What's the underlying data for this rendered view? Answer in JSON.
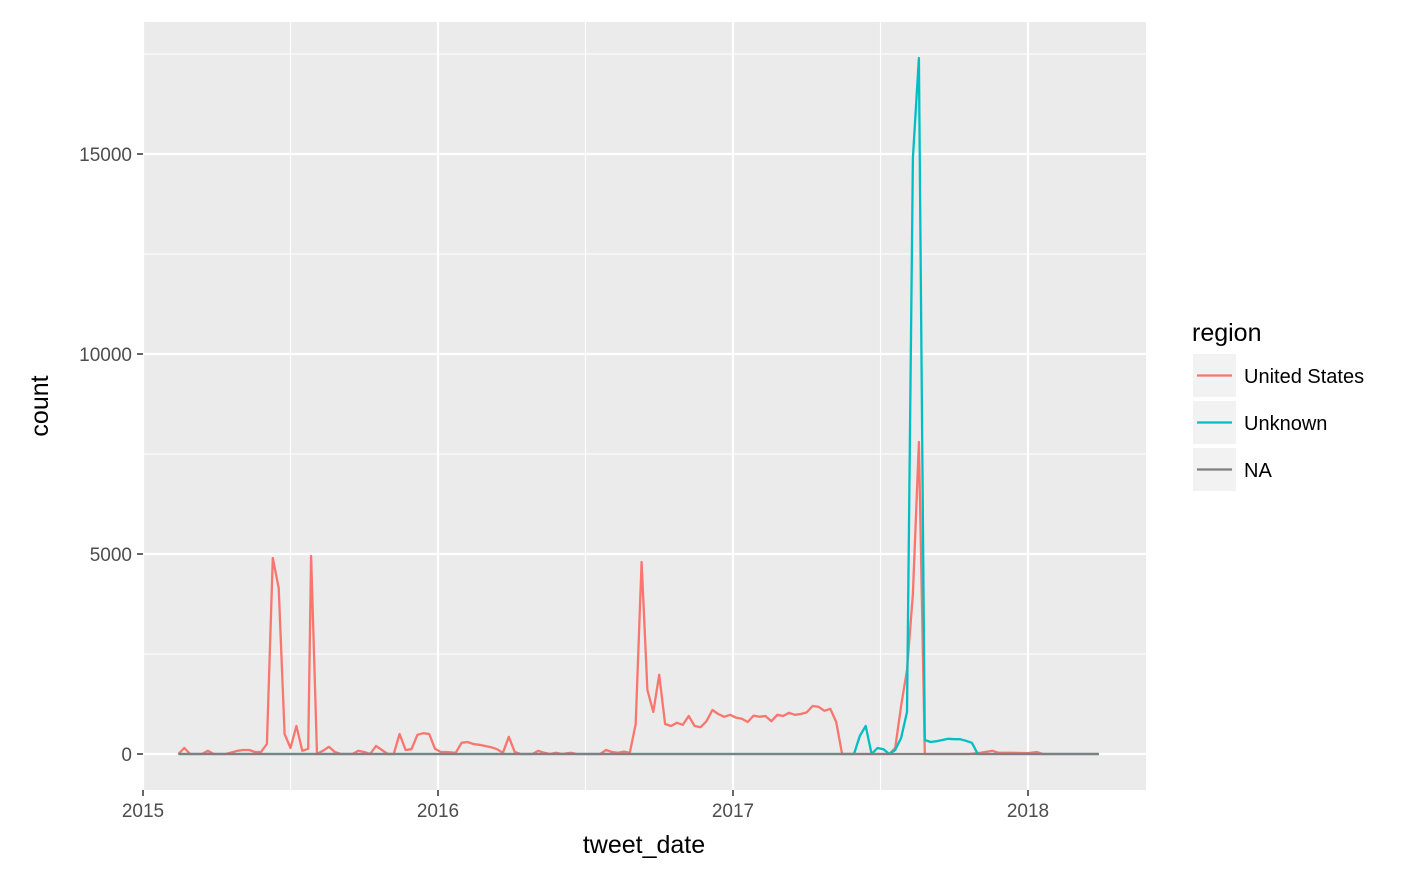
{
  "chart_data": {
    "type": "line",
    "xlabel": "tweet_date",
    "ylabel": "count",
    "xlim": [
      2015.0,
      2018.4
    ],
    "ylim": [
      -900,
      18300
    ],
    "xticks": [
      2015,
      2016,
      2017,
      2018
    ],
    "xtick_labels": [
      "2015",
      "2016",
      "2017",
      "2018"
    ],
    "yticks": [
      0,
      5000,
      10000,
      15000
    ],
    "ytick_labels": [
      "0",
      "5000",
      "10000",
      "15000"
    ],
    "grid": true,
    "legend": {
      "title": "region",
      "position": "right",
      "entries": [
        "United States",
        "Unknown",
        "NA"
      ]
    },
    "series": [
      {
        "name": "United States",
        "color": "#F8766D",
        "points": [
          [
            2015.12,
            0
          ],
          [
            2015.14,
            150
          ],
          [
            2015.16,
            0
          ],
          [
            2015.2,
            0
          ],
          [
            2015.22,
            80
          ],
          [
            2015.24,
            0
          ],
          [
            2015.28,
            0
          ],
          [
            2015.32,
            80
          ],
          [
            2015.34,
            100
          ],
          [
            2015.36,
            100
          ],
          [
            2015.38,
            50
          ],
          [
            2015.4,
            50
          ],
          [
            2015.42,
            250
          ],
          [
            2015.44,
            4900
          ],
          [
            2015.46,
            4150
          ],
          [
            2015.48,
            500
          ],
          [
            2015.5,
            150
          ],
          [
            2015.52,
            700
          ],
          [
            2015.54,
            80
          ],
          [
            2015.56,
            130
          ],
          [
            2015.57,
            4950
          ],
          [
            2015.59,
            0
          ],
          [
            2015.61,
            80
          ],
          [
            2015.63,
            180
          ],
          [
            2015.65,
            50
          ],
          [
            2015.67,
            0
          ],
          [
            2015.71,
            0
          ],
          [
            2015.73,
            80
          ],
          [
            2015.75,
            50
          ],
          [
            2015.77,
            0
          ],
          [
            2015.79,
            200
          ],
          [
            2015.81,
            100
          ],
          [
            2015.83,
            0
          ],
          [
            2015.85,
            0
          ],
          [
            2015.87,
            500
          ],
          [
            2015.89,
            100
          ],
          [
            2015.91,
            120
          ],
          [
            2015.93,
            480
          ],
          [
            2015.95,
            520
          ],
          [
            2015.97,
            500
          ],
          [
            2015.99,
            130
          ],
          [
            2016.01,
            50
          ],
          [
            2016.03,
            50
          ],
          [
            2016.06,
            30
          ],
          [
            2016.08,
            280
          ],
          [
            2016.1,
            300
          ],
          [
            2016.12,
            250
          ],
          [
            2016.14,
            230
          ],
          [
            2016.16,
            200
          ],
          [
            2016.18,
            170
          ],
          [
            2016.2,
            120
          ],
          [
            2016.22,
            30
          ],
          [
            2016.24,
            430
          ],
          [
            2016.26,
            50
          ],
          [
            2016.28,
            0
          ],
          [
            2016.32,
            0
          ],
          [
            2016.34,
            80
          ],
          [
            2016.36,
            30
          ],
          [
            2016.38,
            0
          ],
          [
            2016.4,
            30
          ],
          [
            2016.42,
            0
          ],
          [
            2016.45,
            30
          ],
          [
            2016.47,
            0
          ],
          [
            2016.55,
            0
          ],
          [
            2016.57,
            100
          ],
          [
            2016.59,
            50
          ],
          [
            2016.61,
            30
          ],
          [
            2016.63,
            60
          ],
          [
            2016.65,
            30
          ],
          [
            2016.67,
            750
          ],
          [
            2016.69,
            4800
          ],
          [
            2016.71,
            1600
          ],
          [
            2016.73,
            1050
          ],
          [
            2016.75,
            1980
          ],
          [
            2016.77,
            750
          ],
          [
            2016.79,
            700
          ],
          [
            2016.81,
            780
          ],
          [
            2016.83,
            730
          ],
          [
            2016.85,
            950
          ],
          [
            2016.87,
            700
          ],
          [
            2016.89,
            670
          ],
          [
            2016.91,
            820
          ],
          [
            2016.93,
            1100
          ],
          [
            2016.95,
            1000
          ],
          [
            2016.97,
            930
          ],
          [
            2016.99,
            980
          ],
          [
            2017.01,
            910
          ],
          [
            2017.03,
            880
          ],
          [
            2017.05,
            800
          ],
          [
            2017.07,
            960
          ],
          [
            2017.09,
            930
          ],
          [
            2017.11,
            950
          ],
          [
            2017.13,
            820
          ],
          [
            2017.15,
            980
          ],
          [
            2017.17,
            950
          ],
          [
            2017.19,
            1030
          ],
          [
            2017.21,
            980
          ],
          [
            2017.23,
            1000
          ],
          [
            2017.25,
            1040
          ],
          [
            2017.27,
            1200
          ],
          [
            2017.29,
            1180
          ],
          [
            2017.31,
            1080
          ],
          [
            2017.33,
            1130
          ],
          [
            2017.35,
            800
          ],
          [
            2017.37,
            0
          ],
          [
            2017.45,
            0
          ],
          [
            2017.49,
            0
          ],
          [
            2017.53,
            0
          ],
          [
            2017.55,
            150
          ],
          [
            2017.57,
            1200
          ],
          [
            2017.59,
            2100
          ],
          [
            2017.61,
            4000
          ],
          [
            2017.63,
            7800
          ],
          [
            2017.65,
            0
          ],
          [
            2017.8,
            0
          ],
          [
            2017.84,
            30
          ],
          [
            2017.88,
            80
          ],
          [
            2017.9,
            30
          ],
          [
            2017.95,
            30
          ],
          [
            2018.0,
            20
          ],
          [
            2018.03,
            50
          ],
          [
            2018.05,
            0
          ],
          [
            2018.1,
            0
          ],
          [
            2018.24,
            0
          ]
        ]
      },
      {
        "name": "Unknown",
        "color": "#00BFC4",
        "points": [
          [
            2015.12,
            0
          ],
          [
            2017.41,
            0
          ],
          [
            2017.43,
            450
          ],
          [
            2017.45,
            700
          ],
          [
            2017.47,
            0
          ],
          [
            2017.49,
            150
          ],
          [
            2017.51,
            120
          ],
          [
            2017.53,
            0
          ],
          [
            2017.55,
            100
          ],
          [
            2017.57,
            400
          ],
          [
            2017.59,
            1050
          ],
          [
            2017.61,
            14900
          ],
          [
            2017.63,
            17400
          ],
          [
            2017.65,
            350
          ],
          [
            2017.67,
            300
          ],
          [
            2017.69,
            320
          ],
          [
            2017.71,
            350
          ],
          [
            2017.73,
            380
          ],
          [
            2017.75,
            370
          ],
          [
            2017.77,
            370
          ],
          [
            2017.79,
            330
          ],
          [
            2017.81,
            280
          ],
          [
            2017.83,
            0
          ],
          [
            2018.24,
            0
          ]
        ]
      },
      {
        "name": "NA",
        "color": "#808080",
        "points": [
          [
            2015.12,
            0
          ],
          [
            2018.24,
            0
          ]
        ]
      }
    ]
  }
}
